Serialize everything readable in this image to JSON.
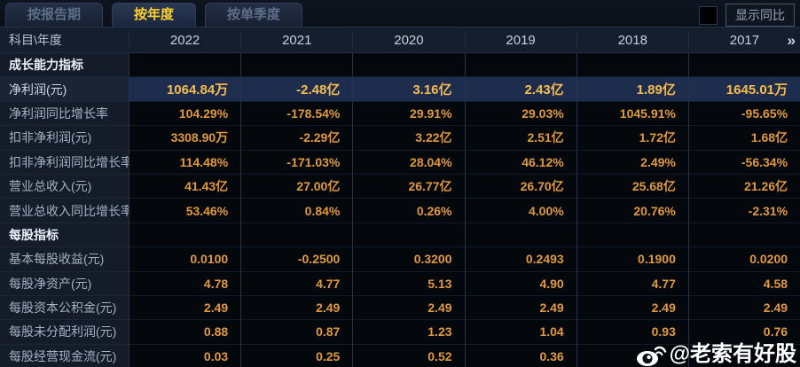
{
  "tabs": [
    {
      "label": "按报告期",
      "active": false
    },
    {
      "label": "按年度",
      "active": true
    },
    {
      "label": "按单季度",
      "active": false
    }
  ],
  "controls": {
    "show_yoy_label": "显示同比"
  },
  "table": {
    "corner_label": "科目\\年度",
    "years": [
      "2022",
      "2021",
      "2020",
      "2019",
      "2018",
      "2017"
    ],
    "more_icon": "»",
    "rows": [
      {
        "type": "section",
        "label": "成长能力指标",
        "values": [
          "",
          "",
          "",
          "",
          "",
          ""
        ]
      },
      {
        "type": "highlight",
        "label": "净利润(元)",
        "values": [
          "1064.84万",
          "-2.48亿",
          "3.16亿",
          "2.43亿",
          "1.89亿",
          "1645.01万"
        ]
      },
      {
        "type": "data",
        "label": "净利润同比增长率",
        "values": [
          "104.29%",
          "-178.54%",
          "29.91%",
          "29.03%",
          "1045.91%",
          "-95.65%"
        ]
      },
      {
        "type": "data",
        "label": "扣非净利润(元)",
        "values": [
          "3308.90万",
          "-2.29亿",
          "3.22亿",
          "2.51亿",
          "1.72亿",
          "1.68亿"
        ]
      },
      {
        "type": "data",
        "label": "扣非净利润同比增长率",
        "values": [
          "114.48%",
          "-171.03%",
          "28.04%",
          "46.12%",
          "2.49%",
          "-56.34%"
        ]
      },
      {
        "type": "data",
        "label": "营业总收入(元)",
        "values": [
          "41.43亿",
          "27.00亿",
          "26.77亿",
          "26.70亿",
          "25.68亿",
          "21.26亿"
        ]
      },
      {
        "type": "data",
        "label": "营业总收入同比增长率",
        "values": [
          "53.46%",
          "0.84%",
          "0.26%",
          "4.00%",
          "20.76%",
          "-2.31%"
        ]
      },
      {
        "type": "section",
        "label": "每股指标",
        "values": [
          "",
          "",
          "",
          "",
          "",
          ""
        ]
      },
      {
        "type": "data",
        "label": "基本每股收益(元)",
        "values": [
          "0.0100",
          "-0.2500",
          "0.3200",
          "0.2493",
          "0.1900",
          "0.0200"
        ]
      },
      {
        "type": "data",
        "label": "每股净资产(元)",
        "values": [
          "4.78",
          "4.77",
          "5.13",
          "4.90",
          "4.77",
          "4.58"
        ]
      },
      {
        "type": "data",
        "label": "每股资本公积金(元)",
        "values": [
          "2.49",
          "2.49",
          "2.49",
          "2.49",
          "2.49",
          "2.49"
        ]
      },
      {
        "type": "data",
        "label": "每股未分配利润(元)",
        "values": [
          "0.88",
          "0.87",
          "1.23",
          "1.04",
          "0.93",
          "0.76"
        ]
      },
      {
        "type": "data",
        "label": "每股经营现金流(元)",
        "values": [
          "0.03",
          "0.25",
          "0.52",
          "0.36",
          "",
          ""
        ]
      }
    ]
  },
  "watermark": {
    "text": "@老索有好股"
  },
  "colors": {
    "value_text": "#e0993d",
    "highlight_value_text": "#f5bd4e",
    "highlight_row_bg": "#1e2d4d",
    "tab_active_text": "#ffd02e",
    "label_col_bg": "#141c2a",
    "header_row_bg": "#151e2d"
  }
}
